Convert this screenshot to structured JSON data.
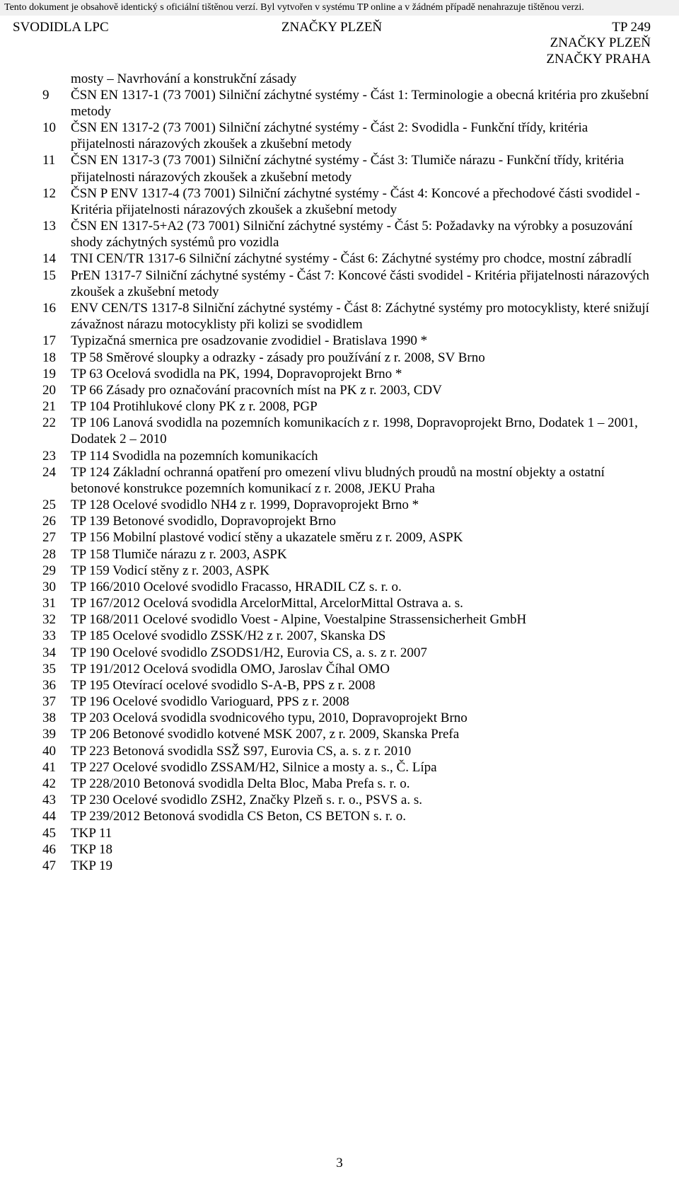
{
  "banner": "Tento dokument je obsahově identický s oficiální tištěnou verzí. Byl vytvořen v systému TP online a v žádném případě nenahrazuje tištěnou verzi.",
  "header": {
    "left": "SVODIDLA LPC",
    "center": "ZNAČKY PLZEŇ",
    "right": "TP 249",
    "sub1": "ZNAČKY PLZEŇ",
    "sub2": "ZNAČKY PRAHA"
  },
  "intro": "mosty – Navrhování a konstrukční zásady",
  "items": [
    {
      "n": "9",
      "t": "ČSN EN 1317-1 (73 7001) Silniční záchytné systémy - Část 1: Terminologie a obecná kritéria pro zkušební metody"
    },
    {
      "n": "10",
      "t": "ČSN EN 1317-2 (73 7001) Silniční záchytné systémy - Část 2: Svodidla - Funkční třídy, kritéria přijatelnosti nárazových zkoušek a zkušební metody"
    },
    {
      "n": "11",
      "t": "ČSN EN 1317-3 (73 7001) Silniční záchytné systémy - Část 3: Tlumiče nárazu - Funkční třídy, kritéria přijatelnosti nárazových zkoušek a zkušební metody"
    },
    {
      "n": "12",
      "t": "ČSN P ENV 1317-4 (73 7001) Silniční záchytné systémy - Část 4: Koncové a přechodové části svodidel - Kritéria přijatelnosti nárazových zkoušek a zkušební metody"
    },
    {
      "n": "13",
      "t": "ČSN EN 1317-5+A2 (73 7001) Silniční záchytné systémy - Část 5: Požadavky na výrobky a posuzování shody záchytných systémů pro vozidla"
    },
    {
      "n": "14",
      "t": "TNI CEN/TR 1317-6 Silniční záchytné systémy - Část 6: Záchytné systémy pro chodce, mostní zábradlí"
    },
    {
      "n": "15",
      "t": "PrEN 1317-7 Silniční záchytné systémy - Část 7: Koncové části svodidel - Kritéria přijatelnosti nárazových zkoušek a zkušební metody"
    },
    {
      "n": "16",
      "t": "ENV CEN/TS 1317-8 Silniční záchytné systémy - Část 8: Záchytné systémy pro motocyklisty, které snižují závažnost nárazu motocyklisty při kolizi se svodidlem"
    },
    {
      "n": "17",
      "t": "Typizačná smernica pre osadzovanie zvodidiel - Bratislava 1990 *"
    },
    {
      "n": "18",
      "t": "TP 58 Směrové sloupky a odrazky - zásady pro používání z r. 2008, SV Brno"
    },
    {
      "n": "19",
      "t": "TP 63 Ocelová svodidla na PK, 1994, Dopravoprojekt Brno *"
    },
    {
      "n": "20",
      "t": "TP 66 Zásady pro označování pracovních míst na PK z r. 2003, CDV"
    },
    {
      "n": "21",
      "t": "TP 104 Protihlukové clony PK z r. 2008, PGP"
    },
    {
      "n": "22",
      "t": "TP 106 Lanová svodidla na pozemních komunikacích z r. 1998, Dopravoprojekt Brno, Dodatek 1 – 2001, Dodatek 2 – 2010"
    },
    {
      "n": "23",
      "t": "TP 114 Svodidla na pozemních komunikacích"
    },
    {
      "n": "24",
      "t": "TP 124 Základní ochranná opatření pro omezení vlivu bludných proudů na mostní objekty a ostatní betonové konstrukce pozemních komunikací z r. 2008, JEKU Praha"
    },
    {
      "n": "25",
      "t": "TP 128 Ocelové svodidlo NH4 z r. 1999, Dopravoprojekt Brno *"
    },
    {
      "n": "26",
      "t": "TP 139 Betonové svodidlo, Dopravoprojekt Brno"
    },
    {
      "n": "27",
      "t": "TP 156 Mobilní plastové vodicí stěny a ukazatele směru z r. 2009, ASPK"
    },
    {
      "n": "28",
      "t": "TP 158 Tlumiče nárazu z r. 2003, ASPK"
    },
    {
      "n": "29",
      "t": "TP 159 Vodicí stěny z r. 2003, ASPK"
    },
    {
      "n": "30",
      "t": "TP 166/2010 Ocelové svodidlo Fracasso, HRADIL CZ s. r. o."
    },
    {
      "n": "31",
      "t": "TP 167/2012 Ocelová svodidla ArcelorMittal, ArcelorMittal Ostrava a. s."
    },
    {
      "n": "32",
      "t": "TP 168/2011 Ocelové svodidlo Voest - Alpine, Voestalpine Strassensicherheit GmbH"
    },
    {
      "n": "33",
      "t": "TP 185 Ocelové svodidlo ZSSK/H2 z r. 2007, Skanska DS"
    },
    {
      "n": "34",
      "t": "TP 190 Ocelové svodidlo ZSODS1/H2, Eurovia CS, a. s. z r. 2007"
    },
    {
      "n": "35",
      "t": "TP 191/2012 Ocelová svodidla OMO, Jaroslav Číhal OMO"
    },
    {
      "n": "36",
      "t": "TP 195 Otevírací ocelové svodidlo S-A-B, PPS z r. 2008"
    },
    {
      "n": "37",
      "t": "TP 196 Ocelové svodidlo Varioguard, PPS z r. 2008"
    },
    {
      "n": "38",
      "t": "TP 203 Ocelová svodidla svodnicového typu, 2010, Dopravoprojekt Brno"
    },
    {
      "n": "39",
      "t": "TP 206 Betonové svodidlo kotvené MSK 2007, z r. 2009, Skanska Prefa"
    },
    {
      "n": "40",
      "t": "TP 223 Betonová svodidla SSŽ S97, Eurovia CS, a. s. z r. 2010"
    },
    {
      "n": "41",
      "t": "TP 227 Ocelové svodidlo ZSSAM/H2, Silnice a mosty a. s., Č. Lípa"
    },
    {
      "n": "42",
      "t": "TP 228/2010 Betonová svodidla Delta Bloc, Maba Prefa s. r. o."
    },
    {
      "n": "43",
      "t": "TP 230 Ocelové svodidlo ZSH2, Značky Plzeň s. r. o., PSVS a. s."
    },
    {
      "n": "44",
      "t": "TP 239/2012 Betonová svodidla CS Beton, CS BETON s. r. o."
    },
    {
      "n": "45",
      "t": "TKP 11"
    },
    {
      "n": "46",
      "t": "TKP 18"
    },
    {
      "n": "47",
      "t": "TKP 19"
    }
  ],
  "page_number": "3",
  "watermark": {
    "stripe_color": "#2e7cbf",
    "background": "#ffffff",
    "stripe_count": 9
  }
}
